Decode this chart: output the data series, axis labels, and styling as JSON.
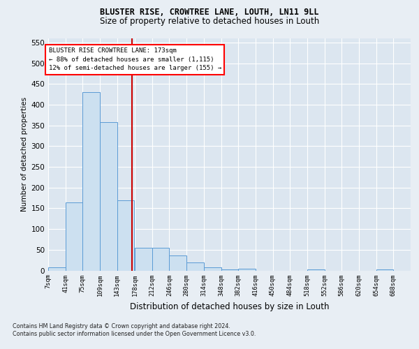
{
  "title1": "BLUSTER RISE, CROWTREE LANE, LOUTH, LN11 9LL",
  "title2": "Size of property relative to detached houses in Louth",
  "xlabel": "Distribution of detached houses by size in Louth",
  "ylabel": "Number of detached properties",
  "footnote1": "Contains HM Land Registry data © Crown copyright and database right 2024.",
  "footnote2": "Contains public sector information licensed under the Open Government Licence v3.0.",
  "annotation_line1": "BLUSTER RISE CROWTREE LANE: 173sqm",
  "annotation_line2": "← 88% of detached houses are smaller (1,115)",
  "annotation_line3": "12% of semi-detached houses are larger (155) →",
  "property_size": 173,
  "bin_labels": [
    "7sqm",
    "41sqm",
    "75sqm",
    "109sqm",
    "143sqm",
    "178sqm",
    "212sqm",
    "246sqm",
    "280sqm",
    "314sqm",
    "348sqm",
    "382sqm",
    "416sqm",
    "450sqm",
    "484sqm",
    "518sqm",
    "552sqm",
    "586sqm",
    "620sqm",
    "654sqm",
    "688sqm"
  ],
  "bin_edges": [
    7,
    41,
    75,
    109,
    143,
    178,
    212,
    246,
    280,
    314,
    348,
    382,
    416,
    450,
    484,
    518,
    552,
    586,
    620,
    654,
    688,
    722
  ],
  "bar_values": [
    8,
    165,
    430,
    358,
    170,
    55,
    55,
    37,
    20,
    8,
    3,
    5,
    0,
    0,
    0,
    2,
    0,
    0,
    0,
    2,
    0
  ],
  "bar_color": "#cce0f0",
  "bar_edge_color": "#5b9bd5",
  "marker_color": "#cc0000",
  "background_color": "#e8eef4",
  "plot_bg_color": "#dce6f0",
  "ylim": [
    0,
    560
  ],
  "yticks": [
    0,
    50,
    100,
    150,
    200,
    250,
    300,
    350,
    400,
    450,
    500,
    550
  ]
}
